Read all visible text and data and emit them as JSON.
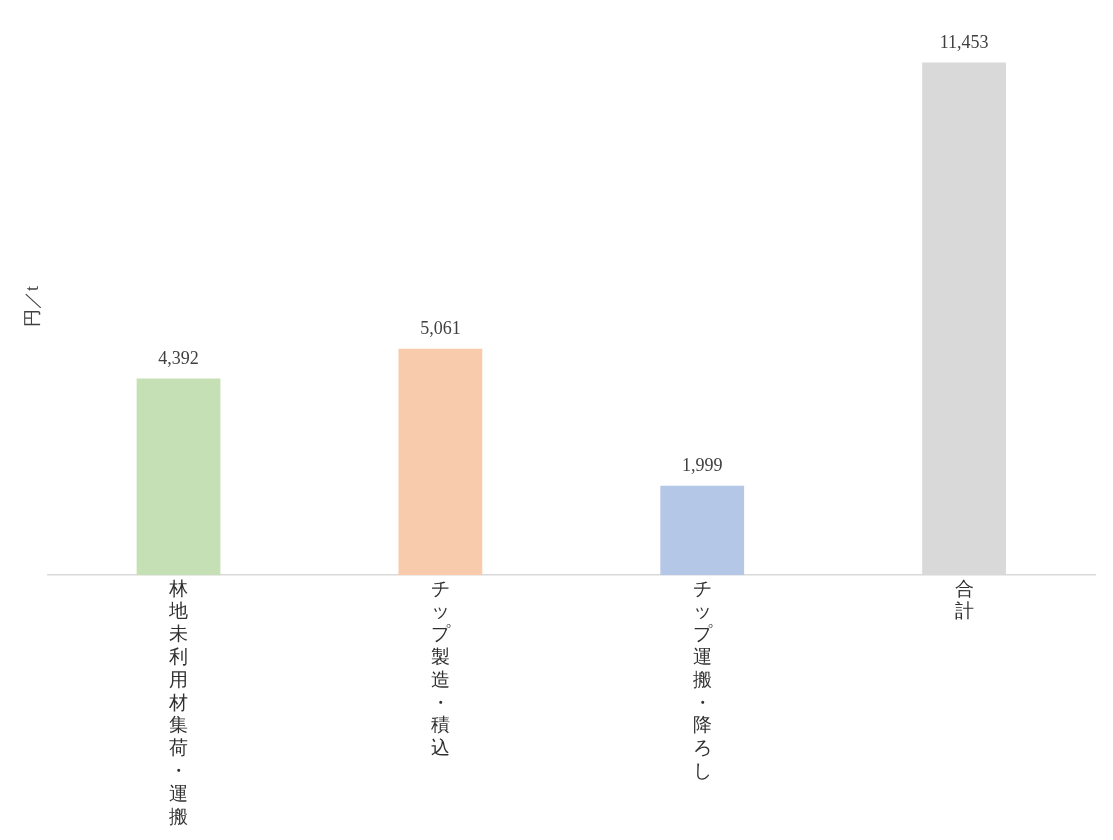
{
  "chart_data": {
    "type": "bar",
    "ylabel": "円／t",
    "categories": [
      "林地未利用材集荷・運搬",
      "チップ製造・積込",
      "チップ運搬・降ろし",
      "合計"
    ],
    "values": [
      4392,
      5061,
      1999,
      11453
    ],
    "colors": [
      "#c5e0b4",
      "#f8cbad",
      "#b4c7e7",
      "#d9d9d9"
    ],
    "value_labels": [
      "4,392",
      "5,061",
      "1,999",
      "11,453"
    ],
    "tick_labels": "x",
    "legend": false
  }
}
